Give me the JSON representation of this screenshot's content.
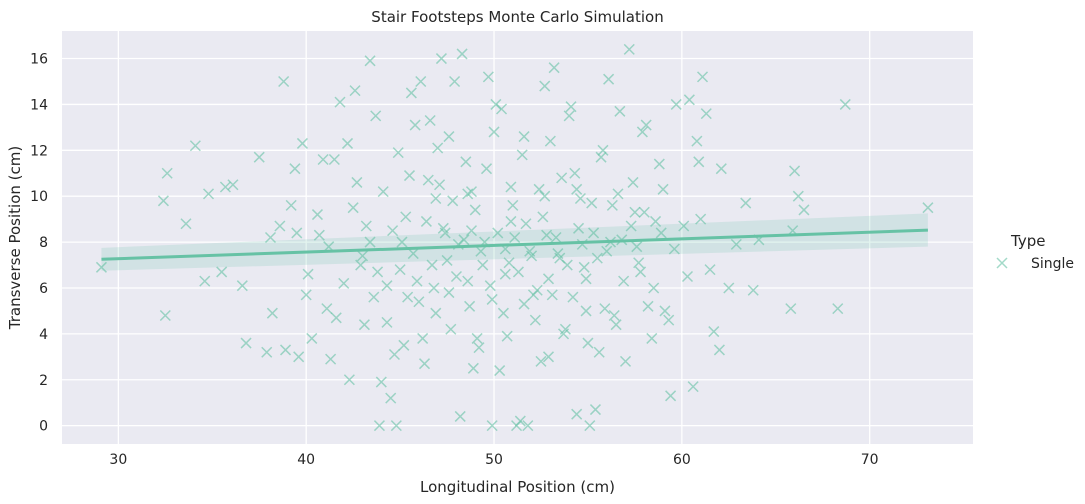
{
  "chart_data": {
    "type": "scatter",
    "title": "Stair Footsteps Monte Carlo Simulation",
    "xlabel": "Longitudinal Position (cm)",
    "ylabel": "Transverse Position (cm)",
    "xlim": [
      27,
      75.5
    ],
    "ylim": [
      -0.8,
      17.2
    ],
    "xticks": [
      30,
      40,
      50,
      60,
      70
    ],
    "yticks": [
      0,
      2,
      4,
      6,
      8,
      10,
      12,
      14,
      16
    ],
    "grid": true,
    "marker": "x",
    "legend": {
      "title": "Type",
      "position": "right",
      "entries": [
        "Single"
      ]
    },
    "colors": {
      "series": "#66c2a5",
      "plot_bg": "#eaeaf2",
      "grid": "#ffffff"
    },
    "series": [
      {
        "name": "Single",
        "points": [
          [
            29.1,
            6.9
          ],
          [
            32.4,
            9.8
          ],
          [
            32.5,
            4.8
          ],
          [
            32.6,
            11.0
          ],
          [
            33.6,
            8.8
          ],
          [
            34.1,
            12.2
          ],
          [
            34.6,
            6.3
          ],
          [
            34.8,
            10.1
          ],
          [
            35.5,
            6.7
          ],
          [
            35.7,
            10.4
          ],
          [
            36.1,
            10.5
          ],
          [
            36.6,
            6.1
          ],
          [
            36.8,
            3.6
          ],
          [
            37.5,
            11.7
          ],
          [
            37.9,
            3.2
          ],
          [
            38.1,
            8.2
          ],
          [
            38.2,
            4.9
          ],
          [
            38.6,
            8.7
          ],
          [
            38.8,
            15.0
          ],
          [
            38.9,
            3.3
          ],
          [
            39.4,
            11.2
          ],
          [
            39.5,
            8.4
          ],
          [
            39.6,
            3.0
          ],
          [
            39.8,
            12.3
          ],
          [
            40.1,
            6.6
          ],
          [
            40.3,
            3.8
          ],
          [
            40.6,
            9.2
          ],
          [
            40.9,
            11.6
          ],
          [
            41.1,
            5.1
          ],
          [
            41.3,
            2.9
          ],
          [
            41.5,
            11.6
          ],
          [
            41.8,
            14.1
          ],
          [
            42.2,
            12.3
          ],
          [
            42.3,
            2.0
          ],
          [
            42.6,
            14.6
          ],
          [
            42.9,
            7.0
          ],
          [
            43.1,
            4.4
          ],
          [
            43.2,
            8.7
          ],
          [
            43.4,
            15.9
          ],
          [
            43.7,
            13.5
          ],
          [
            43.9,
            0.0
          ],
          [
            44.0,
            1.9
          ],
          [
            44.3,
            6.1
          ],
          [
            44.5,
            1.2
          ],
          [
            44.8,
            0.0
          ],
          [
            44.9,
            11.9
          ],
          [
            45.2,
            3.5
          ],
          [
            45.4,
            5.6
          ],
          [
            45.6,
            14.5
          ],
          [
            45.8,
            13.1
          ],
          [
            46.1,
            15.0
          ],
          [
            46.3,
            2.7
          ],
          [
            46.5,
            10.7
          ],
          [
            46.9,
            4.9
          ],
          [
            47.2,
            16.0
          ],
          [
            47.4,
            8.4
          ],
          [
            47.6,
            12.6
          ],
          [
            47.9,
            15.0
          ],
          [
            48.2,
            0.4
          ],
          [
            48.3,
            16.2
          ],
          [
            48.6,
            6.3
          ],
          [
            48.8,
            10.2
          ],
          [
            49.1,
            3.8
          ],
          [
            49.4,
            7.0
          ],
          [
            49.7,
            15.2
          ],
          [
            49.9,
            0.0
          ],
          [
            50.1,
            14.0
          ],
          [
            50.3,
            2.4
          ],
          [
            50.6,
            6.6
          ],
          [
            50.9,
            8.9
          ],
          [
            51.2,
            0.0
          ],
          [
            51.4,
            0.2
          ],
          [
            51.6,
            12.6
          ],
          [
            51.8,
            0.0
          ],
          [
            52.1,
            5.7
          ],
          [
            52.4,
            10.3
          ],
          [
            52.7,
            14.8
          ],
          [
            52.9,
            3.0
          ],
          [
            53.2,
            15.6
          ],
          [
            53.5,
            7.3
          ],
          [
            53.8,
            4.2
          ],
          [
            54.1,
            13.9
          ],
          [
            54.4,
            0.5
          ],
          [
            54.6,
            9.9
          ],
          [
            54.9,
            6.4
          ],
          [
            55.1,
            0.0
          ],
          [
            55.4,
            0.7
          ],
          [
            55.7,
            11.7
          ],
          [
            56.1,
            15.1
          ],
          [
            56.4,
            4.8
          ],
          [
            56.7,
            13.7
          ],
          [
            57.0,
            2.8
          ],
          [
            57.2,
            16.4
          ],
          [
            57.5,
            9.3
          ],
          [
            57.8,
            6.7
          ],
          [
            58.1,
            13.1
          ],
          [
            58.4,
            3.8
          ],
          [
            58.8,
            11.4
          ],
          [
            59.1,
            5.0
          ],
          [
            59.4,
            1.3
          ],
          [
            59.7,
            14.0
          ],
          [
            60.1,
            8.7
          ],
          [
            60.4,
            14.2
          ],
          [
            60.6,
            1.7
          ],
          [
            60.8,
            12.4
          ],
          [
            61.1,
            15.2
          ],
          [
            61.3,
            13.6
          ],
          [
            61.7,
            4.1
          ],
          [
            62.0,
            3.3
          ],
          [
            62.1,
            11.2
          ],
          [
            62.5,
            6.0
          ],
          [
            62.9,
            7.9
          ],
          [
            63.4,
            9.7
          ],
          [
            63.8,
            5.9
          ],
          [
            64.1,
            8.1
          ],
          [
            65.8,
            5.1
          ],
          [
            65.9,
            8.5
          ],
          [
            66.0,
            11.1
          ],
          [
            66.2,
            10.0
          ],
          [
            66.5,
            9.4
          ],
          [
            68.3,
            5.1
          ],
          [
            68.7,
            14.0
          ],
          [
            73.1,
            9.5
          ],
          [
            41.2,
            7.8
          ],
          [
            42.0,
            6.2
          ],
          [
            42.5,
            9.5
          ],
          [
            43.0,
            7.4
          ],
          [
            43.6,
            5.6
          ],
          [
            44.1,
            10.2
          ],
          [
            44.6,
            8.5
          ],
          [
            45.0,
            6.8
          ],
          [
            45.3,
            9.1
          ],
          [
            45.7,
            7.5
          ],
          [
            46.0,
            5.4
          ],
          [
            46.4,
            8.9
          ],
          [
            46.8,
            6.0
          ],
          [
            47.1,
            10.5
          ],
          [
            47.5,
            7.2
          ],
          [
            47.8,
            9.8
          ],
          [
            48.0,
            6.5
          ],
          [
            48.4,
            8.1
          ],
          [
            48.7,
            5.2
          ],
          [
            49.0,
            9.4
          ],
          [
            49.3,
            7.6
          ],
          [
            49.6,
            11.2
          ],
          [
            49.8,
            6.1
          ],
          [
            50.2,
            8.4
          ],
          [
            50.5,
            4.9
          ],
          [
            50.8,
            7.1
          ],
          [
            51.0,
            9.6
          ],
          [
            51.3,
            6.7
          ],
          [
            51.7,
            8.8
          ],
          [
            52.0,
            7.4
          ],
          [
            52.3,
            5.9
          ],
          [
            52.6,
            9.1
          ],
          [
            52.9,
            6.4
          ],
          [
            53.3,
            8.2
          ],
          [
            53.6,
            10.8
          ],
          [
            53.9,
            7.0
          ],
          [
            54.2,
            5.6
          ],
          [
            54.5,
            8.6
          ],
          [
            54.8,
            6.9
          ],
          [
            55.2,
            9.7
          ],
          [
            55.5,
            7.3
          ],
          [
            55.9,
            5.1
          ],
          [
            56.2,
            8.0
          ],
          [
            56.6,
            10.1
          ],
          [
            56.9,
            6.3
          ],
          [
            57.3,
            8.7
          ],
          [
            57.7,
            7.1
          ],
          [
            58.0,
            9.3
          ],
          [
            58.5,
            6.0
          ],
          [
            58.9,
            8.4
          ],
          [
            43.4,
            8.0
          ],
          [
            44.3,
            4.5
          ],
          [
            45.5,
            10.9
          ],
          [
            46.2,
            3.8
          ],
          [
            47.0,
            12.1
          ],
          [
            47.7,
            4.2
          ],
          [
            48.5,
            11.5
          ],
          [
            49.2,
            3.4
          ],
          [
            50.0,
            12.8
          ],
          [
            50.7,
            3.9
          ],
          [
            51.5,
            11.8
          ],
          [
            52.2,
            4.6
          ],
          [
            53.0,
            12.4
          ],
          [
            53.7,
            4.0
          ],
          [
            54.3,
            11.0
          ],
          [
            55.0,
            3.6
          ],
          [
            55.8,
            12.0
          ],
          [
            56.5,
            4.4
          ],
          [
            57.4,
            10.6
          ],
          [
            58.2,
            5.2
          ],
          [
            59.0,
            10.3
          ],
          [
            59.6,
            7.7
          ],
          [
            60.3,
            6.5
          ],
          [
            61.0,
            9.0
          ],
          [
            40.7,
            8.3
          ],
          [
            41.6,
            4.7
          ],
          [
            42.7,
            10.6
          ],
          [
            44.7,
            3.1
          ],
          [
            46.6,
            13.3
          ],
          [
            48.9,
            2.5
          ],
          [
            50.4,
            13.8
          ],
          [
            52.5,
            2.8
          ],
          [
            54.0,
            13.5
          ],
          [
            55.6,
            3.2
          ],
          [
            57.9,
            12.8
          ],
          [
            59.3,
            4.6
          ],
          [
            60.9,
            11.5
          ],
          [
            61.5,
            6.8
          ],
          [
            39.2,
            9.6
          ],
          [
            40.0,
            5.7
          ],
          [
            43.8,
            6.7
          ],
          [
            45.1,
            8.0
          ],
          [
            46.7,
            7.0
          ],
          [
            47.3,
            8.6
          ],
          [
            48.1,
            7.9
          ],
          [
            48.8,
            8.5
          ],
          [
            49.5,
            8.0
          ],
          [
            50.6,
            7.7
          ],
          [
            51.1,
            8.2
          ],
          [
            51.9,
            7.6
          ],
          [
            52.8,
            8.3
          ],
          [
            53.4,
            7.5
          ],
          [
            54.7,
            7.9
          ],
          [
            55.3,
            8.4
          ],
          [
            56.0,
            7.6
          ],
          [
            56.8,
            8.1
          ],
          [
            57.6,
            7.8
          ],
          [
            58.6,
            8.9
          ],
          [
            45.9,
            6.3
          ],
          [
            47.6,
            5.8
          ],
          [
            49.9,
            5.5
          ],
          [
            51.6,
            5.3
          ],
          [
            53.1,
            5.7
          ],
          [
            54.9,
            5.0
          ],
          [
            46.9,
            9.9
          ],
          [
            48.6,
            10.1
          ],
          [
            50.9,
            10.4
          ],
          [
            52.7,
            10.0
          ],
          [
            54.4,
            10.3
          ],
          [
            56.3,
            9.6
          ]
        ]
      }
    ],
    "regression": {
      "x": [
        29.1,
        73.1
      ],
      "y": [
        7.25,
        8.52
      ],
      "ci_lower": [
        6.75,
        7.8
      ],
      "ci_upper": [
        7.75,
        9.25
      ]
    }
  }
}
